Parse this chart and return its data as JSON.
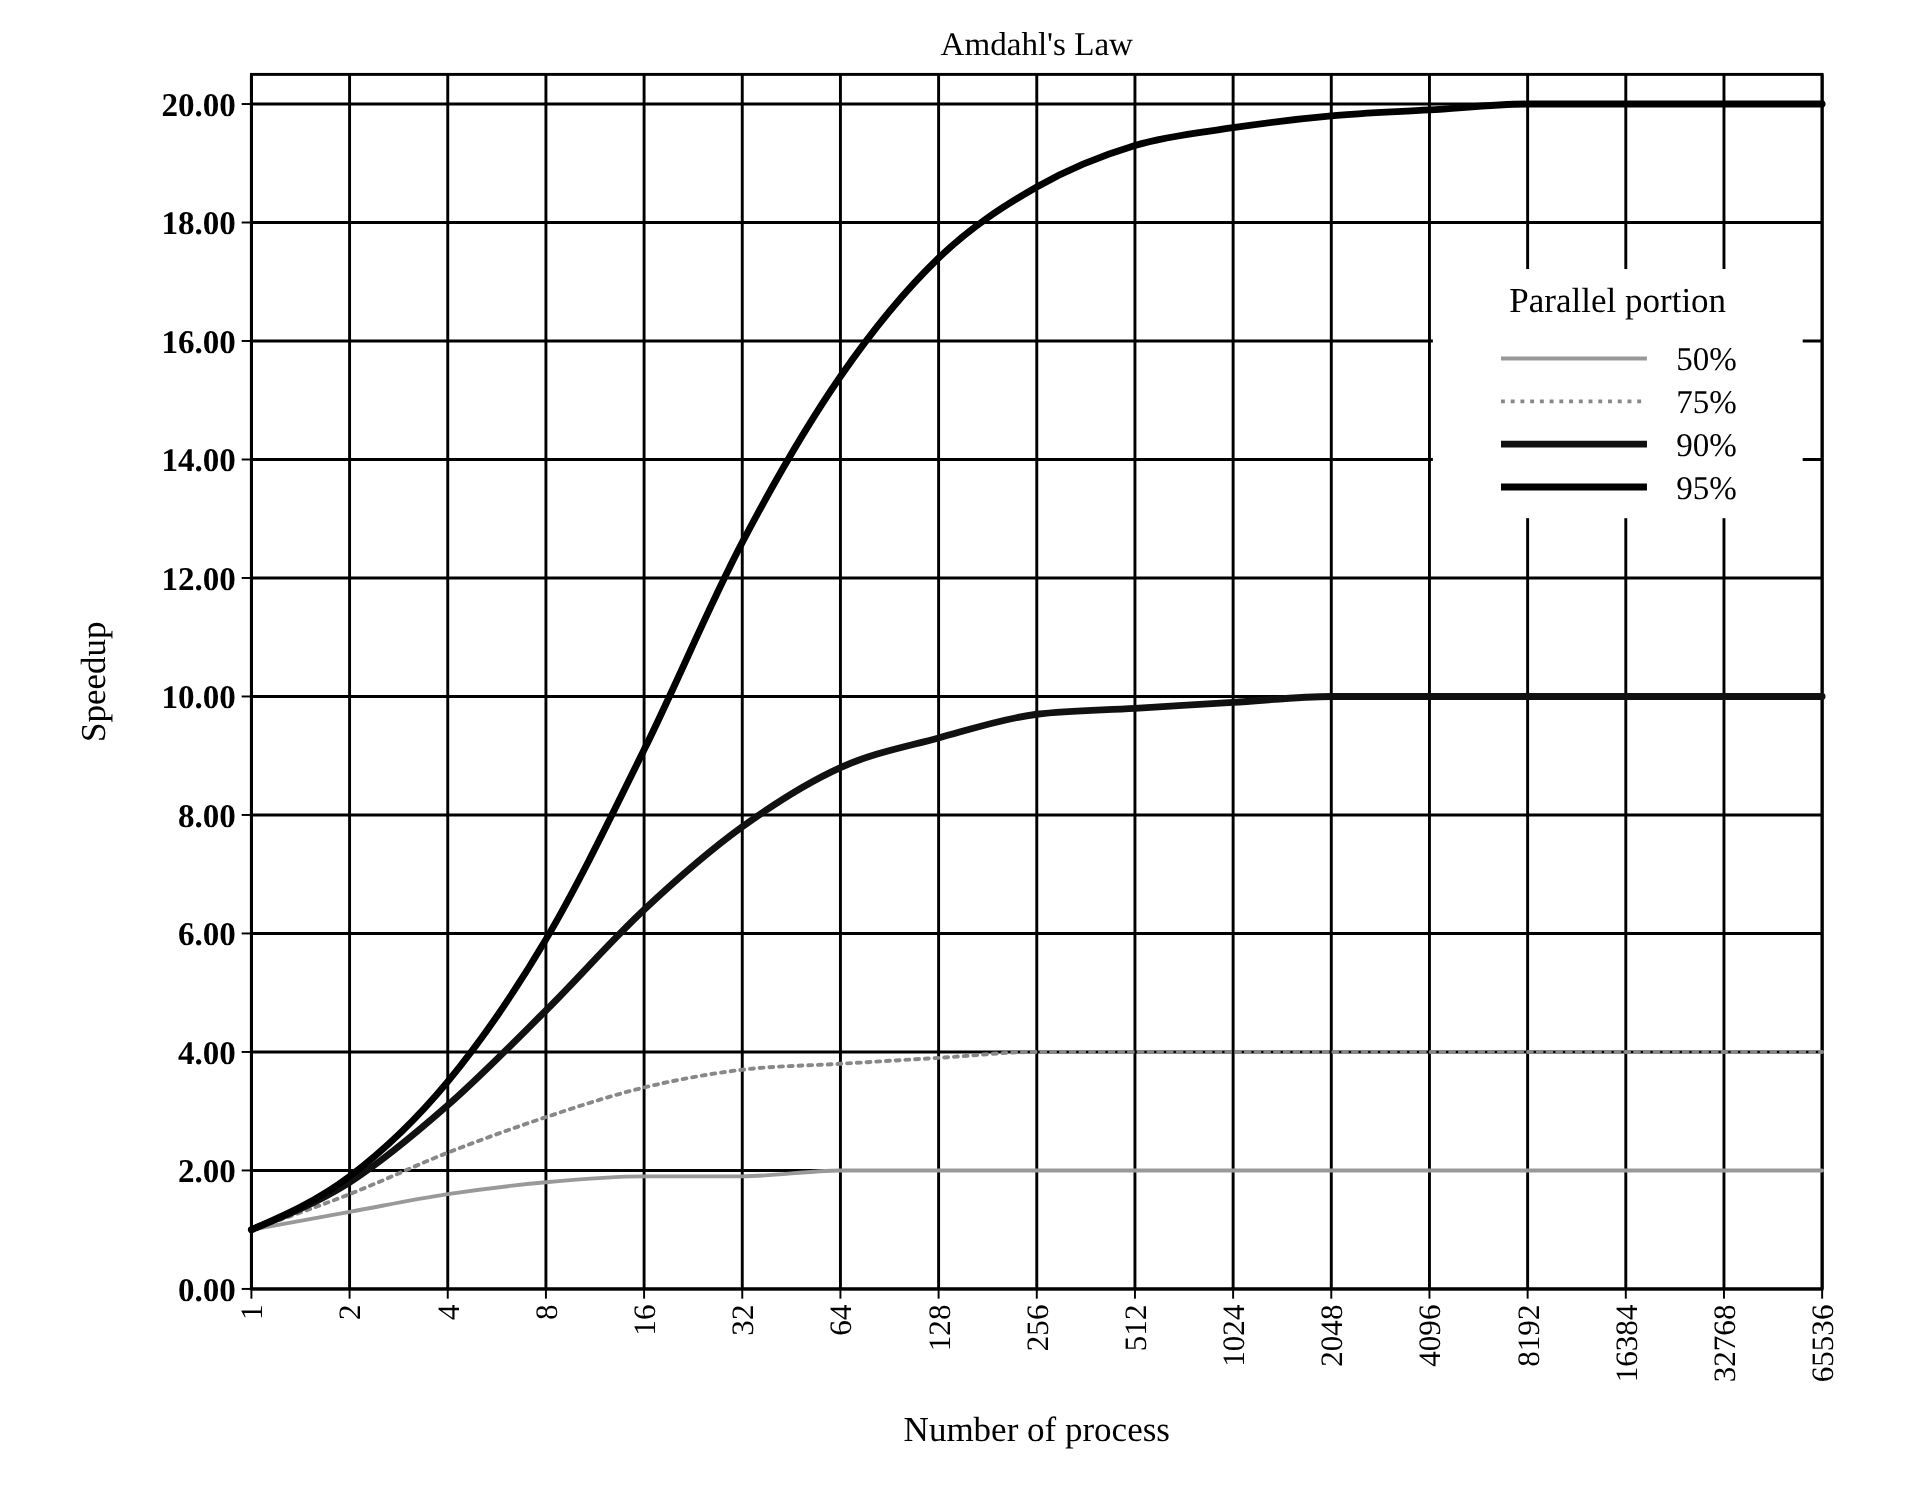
{
  "chart_data": {
    "type": "line",
    "title": "Amdahl's Law",
    "xlabel": "Number of process",
    "ylabel": "Speedup",
    "legend_title": "Parallel portion",
    "legend": "top right",
    "grid": true,
    "marker": "none",
    "categories": [
      "1",
      "2",
      "4",
      "8",
      "16",
      "32",
      "64",
      "128",
      "256",
      "512",
      "1024",
      "2048",
      "4096",
      "8192",
      "16384",
      "32768",
      "65536"
    ],
    "ylim": [
      0,
      20.5
    ],
    "yticks": [
      {
        "value": 0,
        "label": "0.00"
      },
      {
        "value": 2,
        "label": "2.00"
      },
      {
        "value": 4,
        "label": "4.00"
      },
      {
        "value": 6,
        "label": "6.00"
      },
      {
        "value": 8,
        "label": "8.00"
      },
      {
        "value": 10,
        "label": "10.00"
      },
      {
        "value": 12,
        "label": "12.00"
      },
      {
        "value": 14,
        "label": "14.00"
      },
      {
        "value": 16,
        "label": "16.00"
      },
      {
        "value": 18,
        "label": "18.00"
      },
      {
        "value": 20,
        "label": "20.00"
      }
    ],
    "series": [
      {
        "name": "50%",
        "color": "#999999",
        "line_style": "solid",
        "values": [
          1,
          1.3,
          1.6,
          1.8,
          1.9,
          1.9,
          2,
          2,
          2,
          2,
          2,
          2,
          2,
          2,
          2,
          2,
          2
        ]
      },
      {
        "name": "75%",
        "color": "#888888",
        "line_style": "dotted",
        "values": [
          1,
          1.6,
          2.3,
          2.9,
          3.4,
          3.7,
          3.8,
          3.9,
          4,
          4,
          4,
          4,
          4,
          4,
          4,
          4,
          4
        ]
      },
      {
        "name": "90%",
        "color": "#111111",
        "line_style": "solid",
        "values": [
          1,
          1.8,
          3.1,
          4.7,
          6.4,
          7.8,
          8.8,
          9.3,
          9.7,
          9.8,
          9.9,
          10,
          10,
          10,
          10,
          10,
          10
        ]
      },
      {
        "name": "95%",
        "color": "#000000",
        "line_style": "solid",
        "values": [
          1,
          1.9,
          3.5,
          5.9,
          9.1,
          12.6,
          15.4,
          17.4,
          18.6,
          19.3,
          19.6,
          19.8,
          19.9,
          20,
          20,
          20,
          20
        ]
      }
    ]
  }
}
